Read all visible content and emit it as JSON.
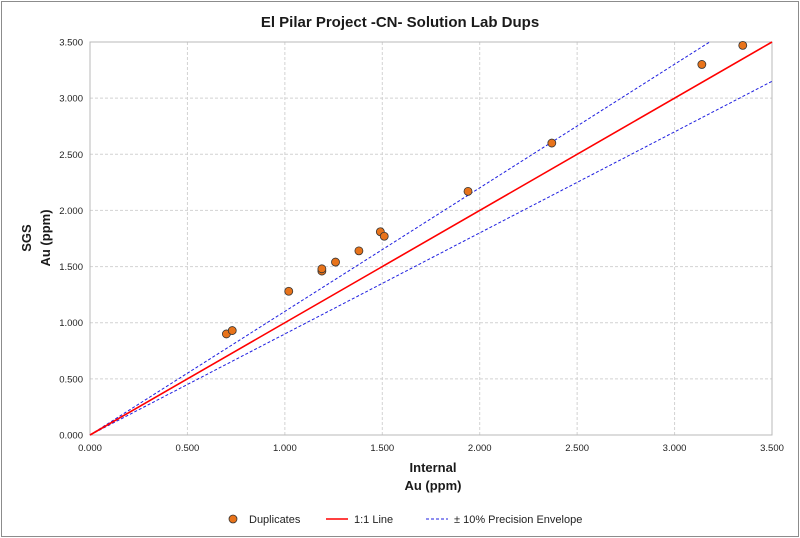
{
  "chart_data": {
    "type": "scatter",
    "title": "El Pilar Project -CN- Solution Lab Dups",
    "xlabel": [
      "Internal",
      "Au (ppm)"
    ],
    "ylabel": [
      "SGS",
      "Au (ppm)"
    ],
    "xlim": [
      0,
      3.5
    ],
    "ylim": [
      0,
      3.5
    ],
    "xticks": [
      "0.000",
      "0.500",
      "1.000",
      "1.500",
      "2.000",
      "2.500",
      "3.000",
      "3.500"
    ],
    "yticks": [
      "0.000",
      "0.500",
      "1.000",
      "1.500",
      "2.000",
      "2.500",
      "3.000",
      "3.500"
    ],
    "grid": true,
    "legend_position": "bottom",
    "series": [
      {
        "name": "Duplicates",
        "kind": "points",
        "color": "#e8731a",
        "edge_color": "#333333",
        "points": [
          {
            "x": 0.7,
            "y": 0.9
          },
          {
            "x": 0.73,
            "y": 0.93
          },
          {
            "x": 1.02,
            "y": 1.28
          },
          {
            "x": 1.19,
            "y": 1.46
          },
          {
            "x": 1.19,
            "y": 1.48
          },
          {
            "x": 1.26,
            "y": 1.54
          },
          {
            "x": 1.38,
            "y": 1.64
          },
          {
            "x": 1.49,
            "y": 1.81
          },
          {
            "x": 1.51,
            "y": 1.77
          },
          {
            "x": 1.94,
            "y": 2.17
          },
          {
            "x": 2.37,
            "y": 2.6
          },
          {
            "x": 3.14,
            "y": 3.3
          },
          {
            "x": 3.35,
            "y": 3.47
          }
        ]
      },
      {
        "name": "1:1 Line",
        "kind": "line",
        "color": "#ff0000",
        "dashed": false,
        "points": [
          {
            "x": 0,
            "y": 0
          },
          {
            "x": 3.5,
            "y": 3.5
          }
        ]
      },
      {
        "name": "± 10% Precision Envelope",
        "kind": "line",
        "color": "#1f1fe0",
        "dashed": true,
        "points": [
          {
            "x": 0,
            "y": 0
          },
          {
            "x": 3.5,
            "y": 3.15
          }
        ]
      },
      {
        "name": "",
        "kind": "line",
        "color": "#1f1fe0",
        "dashed": true,
        "points": [
          {
            "x": 0,
            "y": 0
          },
          {
            "x": 3.18,
            "y": 3.5
          }
        ]
      }
    ]
  }
}
